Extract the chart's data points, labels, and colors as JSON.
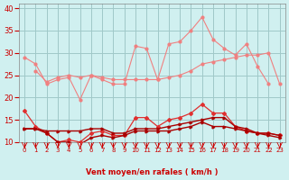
{
  "bg_color": "#d0f0f0",
  "grid_color": "#a0c8c8",
  "x": [
    0,
    1,
    2,
    3,
    4,
    5,
    6,
    7,
    8,
    9,
    10,
    11,
    12,
    13,
    14,
    15,
    16,
    17,
    18,
    19,
    20,
    21,
    22,
    23
  ],
  "line_light1": [
    29.0,
    27.5,
    23.0,
    24.0,
    24.5,
    19.5,
    25.0,
    24.0,
    23.0,
    23.0,
    31.5,
    31.0,
    24.0,
    32.0,
    32.5,
    35.0,
    38.0,
    33.0,
    31.0,
    29.5,
    32.0,
    27.0,
    23.0,
    null
  ],
  "line_light2": [
    null,
    null,
    null,
    null,
    null,
    null,
    null,
    null,
    null,
    null,
    null,
    null,
    null,
    null,
    null,
    null,
    null,
    null,
    null,
    null,
    null,
    null,
    null,
    null
  ],
  "line_light3": [
    null,
    26.0,
    23.5,
    24.5,
    25.0,
    24.5,
    25.0,
    24.5,
    24.0,
    24.0,
    24.0,
    24.0,
    24.0,
    24.5,
    25.0,
    26.0,
    27.5,
    28.0,
    28.5,
    29.0,
    29.5,
    29.5,
    30.0,
    23.0
  ],
  "line_medium1": [
    17.0,
    13.5,
    12.0,
    10.0,
    10.5,
    10.0,
    12.0,
    12.5,
    11.5,
    11.5,
    15.5,
    15.5,
    13.5,
    15.0,
    15.5,
    16.5,
    18.5,
    16.5,
    16.5,
    13.5,
    12.5,
    12.0,
    12.0,
    11.5
  ],
  "line_dark1": [
    13.0,
    13.0,
    12.5,
    12.5,
    12.5,
    12.5,
    13.0,
    13.0,
    12.0,
    12.0,
    13.0,
    13.0,
    13.0,
    13.5,
    14.0,
    14.5,
    15.0,
    15.5,
    15.5,
    13.5,
    13.0,
    12.0,
    12.0,
    11.5
  ],
  "line_dark2": [
    13.0,
    13.0,
    12.0,
    10.0,
    10.0,
    9.5,
    11.0,
    11.5,
    11.0,
    11.5,
    12.5,
    12.5,
    12.5,
    12.5,
    13.0,
    13.5,
    14.5,
    13.5,
    13.5,
    13.0,
    12.5,
    12.0,
    11.5,
    11.0
  ],
  "color_light": "#f08080",
  "color_medium": "#e03030",
  "color_dark": "#aa0000",
  "xlabel": "Vent moyen/en rafales ( km/h )",
  "ylim": [
    10,
    41
  ],
  "xlim": [
    -0.5,
    23.5
  ],
  "yticks": [
    10,
    15,
    20,
    25,
    30,
    35,
    40
  ],
  "xticks": [
    0,
    1,
    2,
    3,
    4,
    5,
    6,
    7,
    8,
    9,
    10,
    11,
    12,
    13,
    14,
    15,
    16,
    17,
    18,
    19,
    20,
    21,
    22,
    23
  ],
  "arrow_directions": [
    225,
    270,
    225,
    270,
    270,
    270,
    270,
    270,
    270,
    270,
    270,
    270,
    270,
    270,
    270,
    225,
    225,
    270,
    270,
    270,
    270,
    270,
    270,
    225
  ]
}
